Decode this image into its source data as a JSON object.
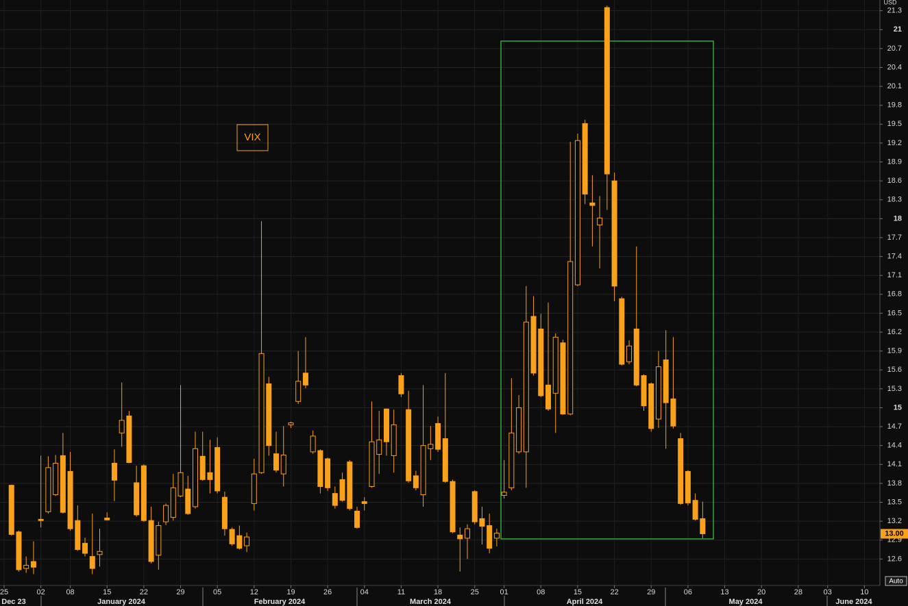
{
  "chart_data": {
    "type": "candlestick",
    "annotation": "VIX",
    "y_unit": "USD",
    "button": "Auto",
    "color": "#f9a11b",
    "months": [
      "Dec 23",
      "January 2024",
      "February 2024",
      "March 2024",
      "April 2024",
      "May 2024",
      "June 2024"
    ],
    "categories": [
      "25",
      null,
      null,
      null,
      null,
      "02",
      null,
      null,
      null,
      "08",
      null,
      null,
      null,
      null,
      "15",
      null,
      null,
      null,
      null,
      "22",
      null,
      null,
      null,
      null,
      "29",
      null,
      null,
      null,
      null,
      "05",
      null,
      null,
      null,
      null,
      "12",
      null,
      null,
      null,
      null,
      "19",
      null,
      null,
      null,
      null,
      "26",
      null,
      null,
      null,
      null,
      "04",
      null,
      null,
      null,
      null,
      "11",
      null,
      null,
      null,
      null,
      "18",
      null,
      null,
      null,
      null,
      "25",
      null,
      null,
      null,
      "01",
      null,
      null,
      null,
      null,
      "08",
      null,
      null,
      null,
      null,
      "15",
      null,
      null,
      null,
      null,
      "22",
      null,
      null,
      null,
      null,
      "29",
      null,
      null,
      null,
      null,
      "06",
      null,
      null,
      null,
      null,
      "13",
      null,
      null,
      null,
      null,
      "20",
      null,
      null,
      null,
      null,
      "28",
      null,
      null,
      null,
      "03",
      null,
      null,
      null,
      null,
      "10",
      null,
      null
    ],
    "open": [
      null,
      13.77,
      13.03,
      12.45,
      12.56,
      13.23,
      13.35,
      13.62,
      14.24,
      13.99,
      13.21,
      12.85,
      12.64,
      12.67,
      13.25,
      14.12,
      14.6,
      14.87,
      13.81,
      14.08,
      13.21,
      12.66,
      13.19,
      13.26,
      13.6,
      13.71,
      13.43,
      14.23,
      13.97,
      14.37,
      13.58,
      13.07,
      12.97,
      12.81,
      13.48,
      13.97,
      15.38,
      14.27,
      13.95,
      14.73,
      15.1,
      15.55,
      14.3,
      14.32,
      14.19,
      13.64,
      13.86,
      14.14,
      13.36,
      13.51,
      13.75,
      14.26,
      14.98,
      14.24,
      15.51,
      14.97,
      13.92,
      13.62,
      14.35,
      14.75,
      14.51,
      13.83,
      12.98,
      12.93,
      13.67,
      13.24,
      13.13,
      12.93,
      13.61,
      13.73,
      14.3,
      14.3,
      16.45,
      16.25,
      15.36,
      15.23,
      16.03,
      14.9,
      16.95,
      19.51,
      18.25,
      17.9,
      21.35,
      18.6,
      16.73,
      15.73,
      16.25,
      15.51,
      15.38,
      14.82,
      15.76,
      15.14,
      14.51,
      13.99,
      13.53,
      13.24,
      null,
      null,
      null,
      null,
      null,
      null,
      null,
      null,
      null,
      null,
      null,
      null,
      null,
      null,
      null,
      null,
      null,
      null,
      null,
      null,
      null,
      null,
      null,
      null
    ],
    "high": [
      null,
      13.78,
      13.05,
      12.64,
      12.88,
      14.24,
      14.23,
      14.25,
      14.6,
      14.3,
      13.45,
      12.94,
      13.32,
      13.08,
      13.34,
      14.34,
      15.4,
      14.95,
      14.08,
      14.1,
      13.43,
      13.19,
      13.48,
      13.95,
      15.36,
      13.92,
      14.62,
      14.62,
      14.49,
      14.53,
      13.67,
      13.1,
      13.13,
      13.02,
      14.19,
      17.96,
      15.49,
      14.62,
      14.71,
      14.78,
      15.9,
      16.12,
      14.64,
      14.34,
      14.21,
      13.75,
      13.97,
      14.17,
      13.43,
      13.58,
      15.1,
      14.95,
      14.99,
      14.97,
      15.55,
      15.27,
      14.0,
      15.36,
      14.71,
      14.86,
      15.55,
      13.86,
      13.1,
      13.15,
      13.69,
      13.43,
      13.32,
      13.08,
      14.17,
      15.47,
      15.2,
      16.93,
      16.77,
      16.49,
      16.67,
      16.18,
      16.08,
      19.22,
      19.35,
      19.57,
      18.69,
      18.36,
      21.38,
      18.73,
      16.76,
      16.07,
      17.56,
      15.53,
      15.4,
      15.9,
      16.23,
      16.12,
      14.6,
      14.01,
      13.64,
      13.51,
      null,
      null,
      null,
      null,
      null,
      null,
      null,
      null,
      null,
      null,
      null,
      null,
      null,
      null,
      null,
      null,
      null,
      null,
      null,
      null,
      null,
      null,
      null,
      null
    ],
    "low": [
      null,
      12.97,
      12.4,
      12.38,
      12.36,
      13.1,
      13.32,
      13.6,
      13.32,
      13.05,
      12.73,
      12.64,
      12.36,
      12.48,
      13.21,
      13.52,
      14.38,
      14.12,
      13.27,
      13.19,
      12.53,
      12.43,
      13.14,
      13.21,
      13.58,
      13.3,
      13.4,
      13.84,
      13.64,
      13.64,
      12.97,
      12.81,
      12.75,
      12.71,
      13.37,
      13.95,
      14.24,
      13.97,
      13.75,
      14.68,
      15.06,
      15.31,
      14.27,
      13.64,
      13.68,
      13.4,
      13.51,
      13.37,
      13.08,
      13.37,
      13.73,
      13.95,
      14.24,
      13.97,
      15.17,
      13.81,
      13.69,
      13.43,
      14.17,
      14.3,
      13.81,
      13.01,
      12.4,
      12.6,
      13.15,
      12.83,
      12.69,
      12.8,
      13.56,
      13.69,
      14.27,
      13.73,
      15.51,
      15.17,
      14.95,
      14.6,
      14.89,
      14.88,
      16.93,
      18.23,
      17.56,
      17.21,
      18.14,
      16.69,
      15.67,
      15.69,
      15.34,
      14.95,
      14.62,
      14.68,
      14.35,
      14.67,
      13.46,
      13.45,
      13.21,
      12.93,
      null,
      null,
      null,
      null,
      null,
      null,
      null,
      null,
      null,
      null,
      null,
      null,
      null,
      null,
      null,
      null,
      null,
      null,
      null,
      null,
      null,
      null,
      null,
      null
    ],
    "close": [
      null,
      12.99,
      12.43,
      12.5,
      12.47,
      13.21,
      14.05,
      14.12,
      13.34,
      13.08,
      12.75,
      12.69,
      12.45,
      12.72,
      13.22,
      13.85,
      14.8,
      14.13,
      13.3,
      13.21,
      12.56,
      13.13,
      13.45,
      13.73,
      13.97,
      13.32,
      14.35,
      13.86,
      13.86,
      13.68,
      13.08,
      12.84,
      12.77,
      12.95,
      13.95,
      15.86,
      14.4,
      14.01,
      14.25,
      14.76,
      15.42,
      15.36,
      14.55,
      13.75,
      13.73,
      13.45,
      13.53,
      13.4,
      13.1,
      13.48,
      14.46,
      14.49,
      14.46,
      14.73,
      15.22,
      13.84,
      13.73,
      14.4,
      14.42,
      14.34,
      13.83,
      13.03,
      12.92,
      13.08,
      13.19,
      13.12,
      12.77,
      13.01,
      13.66,
      14.6,
      15.0,
      16.36,
      15.55,
      15.19,
      14.98,
      16.12,
      14.9,
      17.32,
      19.24,
      18.39,
      18.21,
      18.01,
      18.71,
      16.93,
      15.69,
      15.98,
      15.36,
      15.03,
      14.67,
      15.65,
      15.08,
      14.71,
      13.48,
      13.49,
      13.23,
      13.0,
      null,
      null,
      null,
      null,
      null,
      null,
      null,
      null,
      null,
      null,
      null,
      null,
      null,
      null,
      null,
      null,
      null,
      null,
      null,
      null,
      null,
      null,
      null,
      null
    ],
    "last_price": {
      "value": 13,
      "label": "13.00"
    },
    "ylim": [
      12.18,
      21.47
    ],
    "yticks": [
      12.6,
      12.9,
      13.2,
      13.5,
      13.8,
      14.1,
      14.4,
      14.7,
      15,
      15.3,
      15.6,
      15.9,
      16.2,
      16.5,
      16.8,
      17.1,
      17.4,
      17.7,
      18,
      18.3,
      18.6,
      18.9,
      19.2,
      19.5,
      19.8,
      20.1,
      20.4,
      20.7,
      21,
      21.3
    ],
    "grid": true
  }
}
